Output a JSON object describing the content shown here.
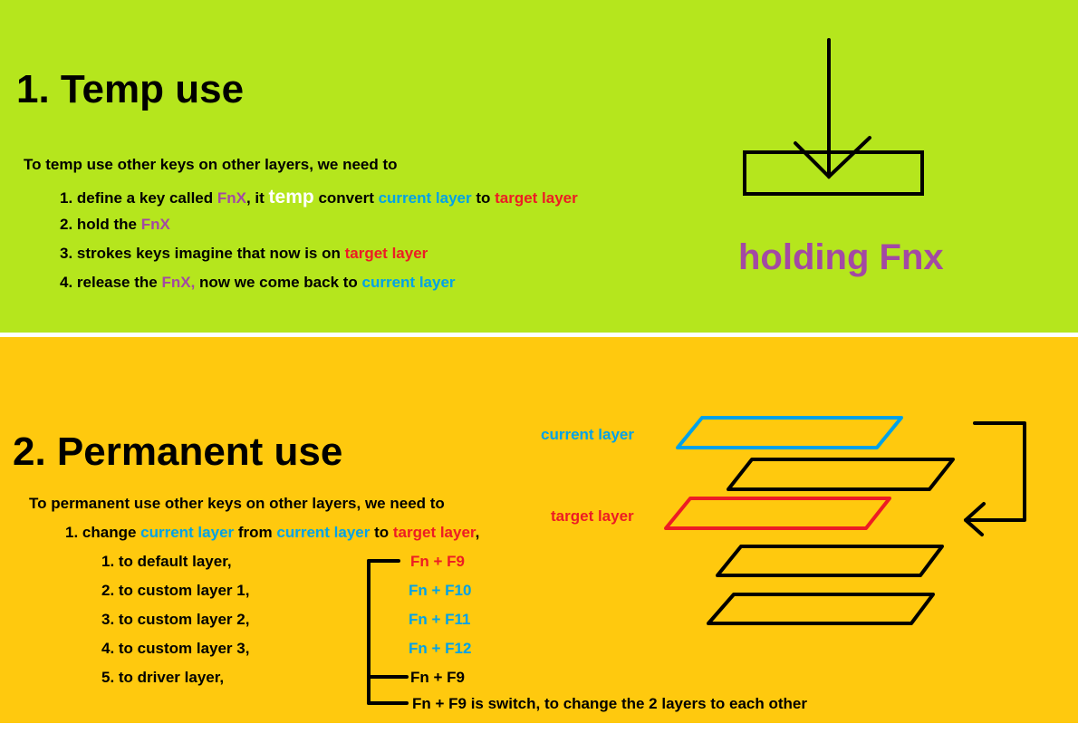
{
  "colors": {
    "top_bg": "#b5e61d",
    "bottom_bg": "#ffc90e",
    "fnx_purple": "#a349a4",
    "current_blue": "#00a2e8",
    "target_red": "#ed1c24",
    "text_black": "#000000"
  },
  "temp": {
    "heading": "1. Temp use",
    "intro": "To temp use other keys on other layers, we need to",
    "step1": {
      "a": "1. define a key called ",
      "fnx": "FnX",
      "b": ", it ",
      "temp": "temp",
      "c": " convert ",
      "current": "current layer",
      "d": " to ",
      "target": "target layer"
    },
    "step2": {
      "a": "2. hold the ",
      "fnx": "FnX"
    },
    "step3": {
      "a": "3. strokes keys imagine that now is on ",
      "target": "target layer"
    },
    "step4": {
      "a": "4. release the ",
      "fnx": "FnX,",
      "b": " now we come back to ",
      "current": "current layer"
    },
    "diagram_label": "holding Fnx"
  },
  "permanent": {
    "heading": "2. Permanent use",
    "intro": "To permanent use other keys on other layers, we need to",
    "step1": {
      "a": "1. change ",
      "current": "current layer",
      "b": " from ",
      "current2": "current layer",
      "c": " to ",
      "target": "target layer",
      "d": ","
    },
    "items": [
      {
        "label": "1. to default layer,",
        "shortcut": "Fn + F9",
        "color": "#ed1c24"
      },
      {
        "label": "2. to custom layer 1,",
        "shortcut": "Fn + F10",
        "color": "#00a2e8"
      },
      {
        "label": "3. to custom layer 2,",
        "shortcut": "Fn + F11",
        "color": "#00a2e8"
      },
      {
        "label": "4. to custom layer 3,",
        "shortcut": "Fn + F12",
        "color": "#00a2e8"
      },
      {
        "label": "5. to driver layer,",
        "shortcut": "Fn + F9",
        "color": "#000000"
      }
    ],
    "switch_note": "Fn + F9 is switch, to change the 2 layers to each other",
    "diagram": {
      "current_label": "current layer",
      "target_label": "target layer"
    }
  }
}
